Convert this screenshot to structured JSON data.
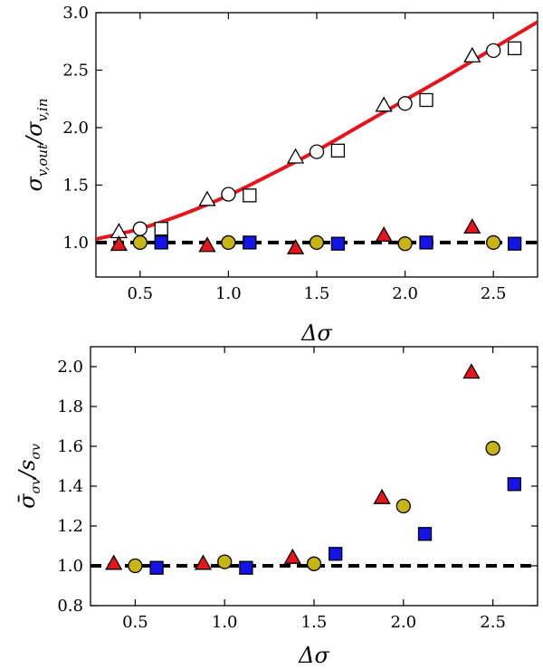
{
  "chart_data": [
    {
      "type": "scatter",
      "xlabel": "Δσ",
      "ylabel": "σ_{v,out}/σ_{v,in}",
      "xlim": [
        0.25,
        2.75
      ],
      "ylim": [
        0.7,
        3.0
      ],
      "xticks": [
        "0.5",
        "1.0",
        "1.5",
        "2.0",
        "2.5"
      ],
      "xtick_values": [
        0.5,
        1.0,
        1.5,
        2.0,
        2.5
      ],
      "yticks": [
        "1.0",
        "1.5",
        "2.0",
        "2.5",
        "3.0"
      ],
      "ytick_values": [
        1.0,
        1.5,
        2.0,
        2.5,
        3.0
      ],
      "grid": false,
      "reference_line": {
        "y": 1.0,
        "style": "dashed",
        "color": "#000000"
      },
      "curve": {
        "color": "#e8141c",
        "x": [
          0.25,
          0.5,
          0.75,
          1.0,
          1.25,
          1.5,
          1.75,
          2.0,
          2.25,
          2.5,
          2.75
        ],
        "y": [
          1.03,
          1.12,
          1.25,
          1.41,
          1.6,
          1.8,
          2.02,
          2.24,
          2.46,
          2.69,
          2.92
        ]
      },
      "series": [
        {
          "marker": "triangle",
          "fill": "#ffffff",
          "x": [
            0.38,
            0.88,
            1.38,
            1.88,
            2.38
          ],
          "y": [
            1.09,
            1.37,
            1.74,
            2.19,
            2.62
          ]
        },
        {
          "marker": "circle",
          "fill": "#ffffff",
          "x": [
            0.5,
            1.0,
            1.5,
            2.0,
            2.5
          ],
          "y": [
            1.12,
            1.42,
            1.79,
            2.21,
            2.67
          ]
        },
        {
          "marker": "square",
          "fill": "#ffffff",
          "x": [
            0.62,
            1.12,
            1.62,
            2.12,
            2.62
          ],
          "y": [
            1.12,
            1.41,
            1.8,
            2.24,
            2.69
          ]
        },
        {
          "marker": "triangle",
          "fill": "#e8141c",
          "x": [
            0.38,
            0.88,
            1.38,
            1.88,
            2.38
          ],
          "y": [
            0.98,
            0.97,
            0.95,
            1.06,
            1.13
          ]
        },
        {
          "marker": "circle",
          "fill": "#c8b414",
          "x": [
            0.5,
            1.0,
            1.5,
            2.0,
            2.5
          ],
          "y": [
            1.0,
            1.0,
            1.0,
            0.99,
            1.0
          ]
        },
        {
          "marker": "square",
          "fill": "#1414e8",
          "x": [
            0.62,
            1.12,
            1.62,
            2.12,
            2.62
          ],
          "y": [
            1.0,
            1.0,
            0.99,
            1.0,
            0.99
          ]
        }
      ]
    },
    {
      "type": "scatter",
      "xlabel": "Δσ",
      "ylabel": "σ̄_{σ_v}/s_{σ_v}",
      "xlim": [
        0.25,
        2.75
      ],
      "ylim": [
        0.8,
        2.1
      ],
      "xticks": [
        "0.5",
        "1.0",
        "1.5",
        "2.0",
        "2.5"
      ],
      "xtick_values": [
        0.5,
        1.0,
        1.5,
        2.0,
        2.5
      ],
      "yticks": [
        "0.8",
        "1.0",
        "1.2",
        "1.4",
        "1.6",
        "1.8",
        "2.0"
      ],
      "ytick_values": [
        0.8,
        1.0,
        1.2,
        1.4,
        1.6,
        1.8,
        2.0
      ],
      "grid": false,
      "reference_line": {
        "y": 1.0,
        "style": "dashed",
        "color": "#000000"
      },
      "series": [
        {
          "marker": "triangle",
          "fill": "#e8141c",
          "x": [
            0.38,
            0.88,
            1.38,
            1.88,
            2.38
          ],
          "y": [
            1.01,
            1.01,
            1.04,
            1.34,
            1.97
          ]
        },
        {
          "marker": "circle",
          "fill": "#c8b414",
          "x": [
            0.5,
            1.0,
            1.5,
            2.0,
            2.5
          ],
          "y": [
            1.0,
            1.02,
            1.01,
            1.3,
            1.59
          ]
        },
        {
          "marker": "square",
          "fill": "#1414e8",
          "x": [
            0.62,
            1.12,
            1.62,
            2.12,
            2.62
          ],
          "y": [
            0.99,
            0.99,
            1.06,
            1.16,
            1.41
          ]
        }
      ]
    }
  ]
}
